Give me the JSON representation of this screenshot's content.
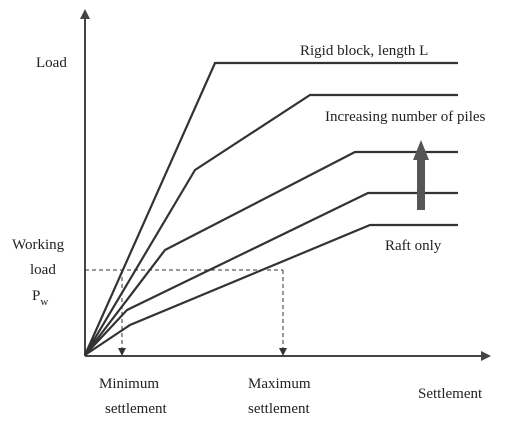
{
  "y_axis_label": "Load",
  "x_axis_label": "Settlement",
  "curve_labels": {
    "top": "Rigid block, length L",
    "bottom": "Raft only"
  },
  "arrow_label": "Increasing number of piles",
  "working_load": {
    "lines": [
      "Working",
      "load"
    ],
    "symbol": "P",
    "subscript": "w"
  },
  "minimum_settlement": [
    "Minimum",
    "settlement"
  ],
  "maximum_settlement": [
    "Maximum",
    "settlement"
  ]
}
